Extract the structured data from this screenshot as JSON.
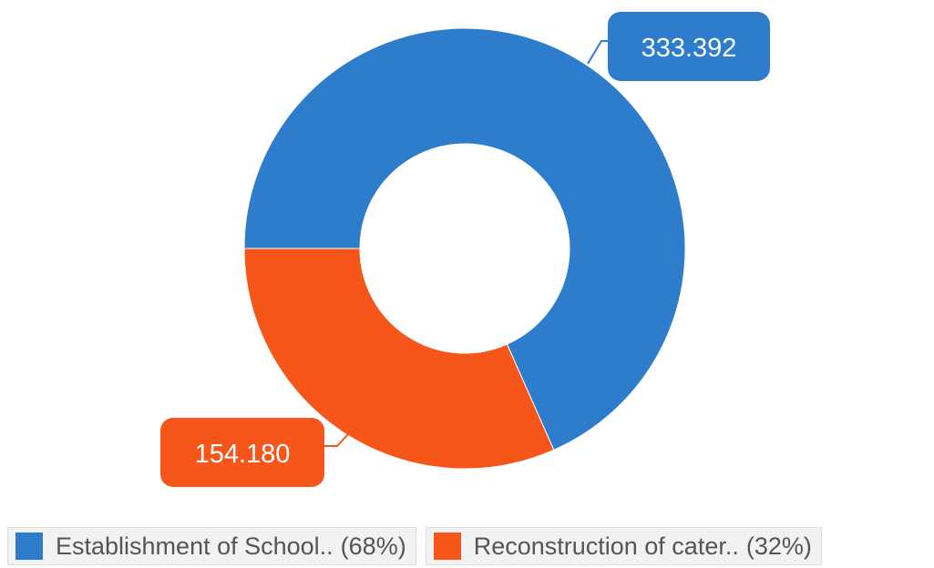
{
  "chart_data": {
    "type": "pie",
    "variant": "donut",
    "title": "",
    "series": [
      {
        "name": "Establishment of School..",
        "value": 333.392,
        "value_label": "333.392",
        "percent_label": "(68%)",
        "color": "#2e7dcc"
      },
      {
        "name": "Reconstruction of cater..",
        "value": 154.18,
        "value_label": "154.180",
        "percent_label": "(32%)",
        "color": "#f7561b"
      }
    ],
    "legend_position": "bottom-left"
  }
}
